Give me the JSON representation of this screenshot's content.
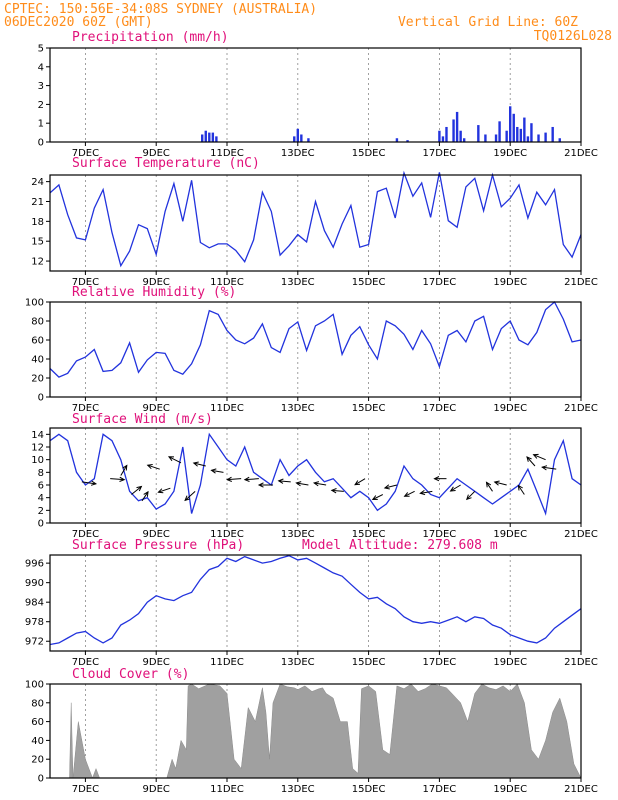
{
  "header": {
    "line1_left": "CPTEC:    150:56E-34:08S   SYDNEY (AUSTRALIA)",
    "line2_left": "06DEC2020 60Z (GMT)",
    "line2_right": "Vertical Grid Line: 60Z",
    "code": "TQ0126L028"
  },
  "colors": {
    "header": "#ff8c1a",
    "panel_title": "#e0107a",
    "series": "#2233dd",
    "cloud_fill": "#a0a0a0"
  },
  "x_axis": {
    "tick_labels": [
      "7DEC",
      "9DEC",
      "11DEC",
      "13DEC",
      "15DEC",
      "17DEC",
      "19DEC",
      "21DEC"
    ],
    "tick_day_index": [
      1,
      3,
      5,
      7,
      9,
      11,
      13,
      15
    ],
    "range_days": [
      0,
      15
    ]
  },
  "chart_data": [
    {
      "id": "precip",
      "type": "bar",
      "title": "Precipitation (mm/h)",
      "ylim": [
        0,
        5
      ],
      "yticks": [
        0,
        1,
        2,
        3,
        4,
        5
      ],
      "x": [
        4.3,
        4.4,
        4.5,
        4.6,
        4.7,
        6.9,
        7.0,
        7.1,
        7.3,
        9.8,
        10.1,
        11.0,
        11.1,
        11.2,
        11.4,
        11.5,
        11.6,
        11.7,
        12.1,
        12.3,
        12.6,
        12.7,
        12.9,
        13.0,
        13.1,
        13.2,
        13.3,
        13.4,
        13.5,
        13.6,
        13.8,
        14.0,
        14.2,
        14.4
      ],
      "values": [
        0.4,
        0.6,
        0.5,
        0.5,
        0.3,
        0.3,
        0.7,
        0.4,
        0.2,
        0.2,
        0.1,
        0.6,
        0.3,
        0.8,
        1.2,
        1.6,
        0.6,
        0.2,
        0.9,
        0.4,
        0.4,
        1.1,
        0.6,
        1.9,
        1.5,
        0.8,
        0.7,
        1.3,
        0.3,
        1.0,
        0.4,
        0.5,
        0.8,
        0.2
      ]
    },
    {
      "id": "temp",
      "type": "line",
      "title": "Surface Temperature (nC)",
      "ylim": [
        10.5,
        25
      ],
      "yticks": [
        12,
        15,
        18,
        21,
        24
      ],
      "x": [
        0,
        0.25,
        0.5,
        0.75,
        1,
        1.25,
        1.5,
        1.75,
        2,
        2.25,
        2.5,
        2.75,
        3,
        3.25,
        3.5,
        3.75,
        4,
        4.25,
        4.5,
        4.75,
        5,
        5.25,
        5.5,
        5.75,
        6,
        6.25,
        6.5,
        6.75,
        7,
        7.25,
        7.5,
        7.75,
        8,
        8.25,
        8.5,
        8.75,
        9,
        9.25,
        9.5,
        9.75,
        10,
        10.25,
        10.5,
        10.75,
        11,
        11.25,
        11.5,
        11.75,
        12,
        12.25,
        12.5,
        12.75,
        13,
        13.25,
        13.5,
        13.75,
        14,
        14.25,
        14.5,
        14.75,
        15
      ],
      "values": [
        22.3,
        23.5,
        19,
        15.5,
        15.2,
        20,
        22.8,
        16.3,
        11.3,
        13.5,
        17.5,
        16.9,
        13,
        19.5,
        23.7,
        18,
        24.2,
        14.8,
        14,
        14.6,
        14.6,
        13.6,
        11.9,
        15.2,
        22.4,
        19.5,
        12.9,
        14.3,
        16,
        14.9,
        21,
        16.6,
        14.1,
        17.6,
        20.4,
        14.1,
        14.5,
        22.5,
        23,
        18.5,
        25.3,
        21.8,
        23.8,
        18.6,
        25.4,
        18.1,
        17.1,
        23.2,
        24.5,
        19.6,
        25,
        20.2,
        21.5,
        23.5,
        18.5,
        22.4,
        20.5,
        22.8,
        14.5,
        12.6,
        16
      ]
    },
    {
      "id": "rh",
      "type": "line",
      "title": "Relative Humidity (%)",
      "ylim": [
        0,
        100
      ],
      "yticks": [
        0,
        20,
        40,
        60,
        80,
        100
      ],
      "x": [
        0,
        0.25,
        0.5,
        0.75,
        1,
        1.25,
        1.5,
        1.75,
        2,
        2.25,
        2.5,
        2.75,
        3,
        3.25,
        3.5,
        3.75,
        4,
        4.25,
        4.5,
        4.75,
        5,
        5.25,
        5.5,
        5.75,
        6,
        6.25,
        6.5,
        6.75,
        7,
        7.25,
        7.5,
        7.75,
        8,
        8.25,
        8.5,
        8.75,
        9,
        9.25,
        9.5,
        9.75,
        10,
        10.25,
        10.5,
        10.75,
        11,
        11.25,
        11.5,
        11.75,
        12,
        12.25,
        12.5,
        12.75,
        13,
        13.25,
        13.5,
        13.75,
        14,
        14.25,
        14.5,
        14.75,
        15
      ],
      "values": [
        30,
        21,
        25,
        38,
        42,
        50,
        27,
        28,
        36,
        57,
        26,
        39,
        47,
        46,
        28,
        24,
        35,
        55,
        91,
        87,
        70,
        60,
        56,
        62,
        77,
        52,
        47,
        72,
        79,
        49,
        75,
        80,
        87,
        45,
        65,
        74,
        55,
        40,
        80,
        75,
        66,
        50,
        70,
        56,
        32,
        65,
        70,
        58,
        80,
        85,
        50,
        72,
        80,
        60,
        55,
        68,
        92,
        100,
        82,
        58,
        60
      ]
    },
    {
      "id": "wind",
      "type": "line",
      "title": "Surface Wind (m/s)",
      "ylim": [
        0,
        15
      ],
      "yticks": [
        0,
        2,
        4,
        6,
        8,
        10,
        12,
        14
      ],
      "x": [
        0,
        0.25,
        0.5,
        0.75,
        1,
        1.25,
        1.5,
        1.75,
        2,
        2.25,
        2.5,
        2.75,
        3,
        3.25,
        3.5,
        3.75,
        4,
        4.25,
        4.5,
        4.75,
        5,
        5.25,
        5.5,
        5.75,
        6,
        6.25,
        6.5,
        6.75,
        7,
        7.25,
        7.5,
        7.75,
        8,
        8.25,
        8.5,
        8.75,
        9,
        9.25,
        9.5,
        9.75,
        10,
        10.25,
        10.5,
        10.75,
        11,
        11.25,
        11.5,
        11.75,
        12,
        12.25,
        12.5,
        12.75,
        13,
        13.25,
        13.5,
        13.75,
        14,
        14.25,
        14.5,
        14.75,
        15
      ],
      "values": [
        13,
        14,
        13,
        8,
        6,
        7,
        14,
        13,
        10,
        5,
        3.5,
        4,
        2.2,
        3,
        5,
        12,
        1.5,
        6,
        14,
        12,
        10,
        9,
        12,
        8,
        7,
        6,
        10,
        7.5,
        9,
        10,
        8,
        6.5,
        7,
        5.5,
        4,
        5,
        4,
        2,
        3,
        5,
        9,
        7,
        6,
        4.5,
        4,
        5.5,
        7,
        6,
        5,
        4,
        3,
        4,
        5,
        6,
        8.5,
        5,
        1.5,
        10,
        13,
        7,
        6
      ],
      "arrows": [
        {
          "x": 0.9,
          "y": 6.5,
          "dx": 14,
          "dy": 2
        },
        {
          "x": 1.7,
          "y": 7,
          "dx": 14,
          "dy": 1
        },
        {
          "x": 2.0,
          "y": 7.5,
          "dx": 6,
          "dy": -10
        },
        {
          "x": 2.3,
          "y": 4.5,
          "dx": 10,
          "dy": -8
        },
        {
          "x": 2.6,
          "y": 3.5,
          "dx": 6,
          "dy": -9
        },
        {
          "x": 3.1,
          "y": 8.5,
          "dx": -12,
          "dy": -4
        },
        {
          "x": 3.4,
          "y": 5.5,
          "dx": -12,
          "dy": 4
        },
        {
          "x": 3.7,
          "y": 9.5,
          "dx": -12,
          "dy": -6
        },
        {
          "x": 4.1,
          "y": 5,
          "dx": -10,
          "dy": 9
        },
        {
          "x": 4.4,
          "y": 9,
          "dx": -12,
          "dy": -3
        },
        {
          "x": 4.9,
          "y": 8,
          "dx": -12,
          "dy": -2
        },
        {
          "x": 5.4,
          "y": 7,
          "dx": -14,
          "dy": 1
        },
        {
          "x": 5.9,
          "y": 7,
          "dx": -14,
          "dy": 1
        },
        {
          "x": 6.3,
          "y": 6,
          "dx": -14,
          "dy": 0
        },
        {
          "x": 6.8,
          "y": 6.5,
          "dx": -12,
          "dy": -1
        },
        {
          "x": 7.3,
          "y": 6,
          "dx": -12,
          "dy": -2
        },
        {
          "x": 7.8,
          "y": 6,
          "dx": -12,
          "dy": -2
        },
        {
          "x": 8.3,
          "y": 5,
          "dx": -12,
          "dy": -1
        },
        {
          "x": 8.9,
          "y": 7,
          "dx": -10,
          "dy": 6
        },
        {
          "x": 9.4,
          "y": 4.5,
          "dx": -10,
          "dy": 5
        },
        {
          "x": 9.8,
          "y": 6,
          "dx": -12,
          "dy": 3
        },
        {
          "x": 10.3,
          "y": 5,
          "dx": -10,
          "dy": 5
        },
        {
          "x": 10.8,
          "y": 5,
          "dx": -12,
          "dy": 2
        },
        {
          "x": 11.2,
          "y": 7,
          "dx": -12,
          "dy": 0
        },
        {
          "x": 11.6,
          "y": 6,
          "dx": -10,
          "dy": 6
        },
        {
          "x": 12.0,
          "y": 5,
          "dx": -8,
          "dy": 8
        },
        {
          "x": 12.5,
          "y": 5,
          "dx": -6,
          "dy": -9
        },
        {
          "x": 12.9,
          "y": 6,
          "dx": -12,
          "dy": -3
        },
        {
          "x": 13.4,
          "y": 4.5,
          "dx": -6,
          "dy": -9
        },
        {
          "x": 13.7,
          "y": 9,
          "dx": -8,
          "dy": -9
        },
        {
          "x": 14.0,
          "y": 10,
          "dx": -12,
          "dy": -5
        },
        {
          "x": 14.3,
          "y": 8.5,
          "dx": -14,
          "dy": -2
        }
      ]
    },
    {
      "id": "pres",
      "type": "line",
      "title": "Surface Pressure (hPa)",
      "annotation": "Model Altitude: 279.608 m",
      "ylim": [
        969,
        998.5
      ],
      "yticks": [
        972,
        978,
        984,
        990,
        996
      ],
      "x": [
        0,
        0.25,
        0.5,
        0.75,
        1,
        1.25,
        1.5,
        1.75,
        2,
        2.25,
        2.5,
        2.75,
        3,
        3.25,
        3.5,
        3.75,
        4,
        4.25,
        4.5,
        4.75,
        5,
        5.25,
        5.5,
        5.75,
        6,
        6.25,
        6.5,
        6.75,
        7,
        7.25,
        7.5,
        7.75,
        8,
        8.25,
        8.5,
        8.75,
        9,
        9.25,
        9.5,
        9.75,
        10,
        10.25,
        10.5,
        10.75,
        11,
        11.25,
        11.5,
        11.75,
        12,
        12.25,
        12.5,
        12.75,
        13,
        13.25,
        13.5,
        13.75,
        14,
        14.25,
        14.5,
        14.75,
        15
      ],
      "values": [
        971,
        971.5,
        973,
        974.5,
        975,
        973,
        971.5,
        973,
        977,
        978.5,
        980.5,
        984,
        986,
        985,
        984.5,
        986,
        987,
        991,
        994,
        995,
        997.5,
        996.5,
        998,
        997,
        996,
        996.5,
        997.5,
        998.3,
        997,
        997.5,
        996,
        994.5,
        993,
        992,
        989.5,
        987,
        985,
        985.5,
        983.5,
        982,
        979.5,
        978,
        977.5,
        978,
        977.5,
        978.5,
        979.5,
        978,
        979.5,
        979,
        977,
        976,
        974,
        973,
        972,
        971.5,
        973,
        976,
        978,
        980,
        982
      ]
    },
    {
      "id": "cloud",
      "type": "area",
      "title": "Cloud Cover (%)",
      "ylim": [
        0,
        100
      ],
      "yticks": [
        0,
        20,
        40,
        60,
        80,
        100
      ],
      "x": [
        0,
        0.2,
        0.4,
        0.55,
        0.6,
        0.65,
        0.8,
        1.0,
        1.2,
        1.3,
        1.4,
        1.6,
        2.0,
        2.4,
        2.9,
        3.3,
        3.45,
        3.55,
        3.7,
        3.85,
        3.9,
        4.0,
        4.2,
        4.5,
        4.8,
        5.0,
        5.2,
        5.4,
        5.6,
        5.8,
        6.0,
        6.1,
        6.2,
        6.3,
        6.5,
        6.7,
        6.9,
        7.0,
        7.2,
        7.4,
        7.6,
        7.7,
        7.8,
        8.0,
        8.2,
        8.4,
        8.55,
        8.7,
        8.8,
        9.0,
        9.2,
        9.4,
        9.6,
        9.8,
        10.0,
        10.2,
        10.4,
        10.6,
        10.8,
        11.0,
        11.2,
        11.4,
        11.6,
        11.8,
        12.0,
        12.2,
        12.4,
        12.6,
        12.8,
        13.0,
        13.2,
        13.4,
        13.6,
        13.8,
        14.0,
        14.2,
        14.4,
        14.6,
        14.8,
        15.0
      ],
      "values": [
        0,
        0,
        0,
        0,
        80,
        0,
        60,
        20,
        0,
        10,
        0,
        0,
        0,
        0,
        0,
        0,
        20,
        10,
        40,
        30,
        98,
        100,
        95,
        100,
        98,
        90,
        20,
        10,
        75,
        60,
        96,
        70,
        20,
        80,
        100,
        97,
        96,
        94,
        98,
        92,
        95,
        96,
        90,
        85,
        60,
        60,
        10,
        5,
        95,
        98,
        92,
        30,
        25,
        98,
        95,
        100,
        92,
        95,
        100,
        98,
        96,
        88,
        80,
        60,
        90,
        100,
        96,
        94,
        98,
        92,
        100,
        80,
        30,
        20,
        40,
        70,
        85,
        60,
        15,
        0
      ]
    }
  ]
}
